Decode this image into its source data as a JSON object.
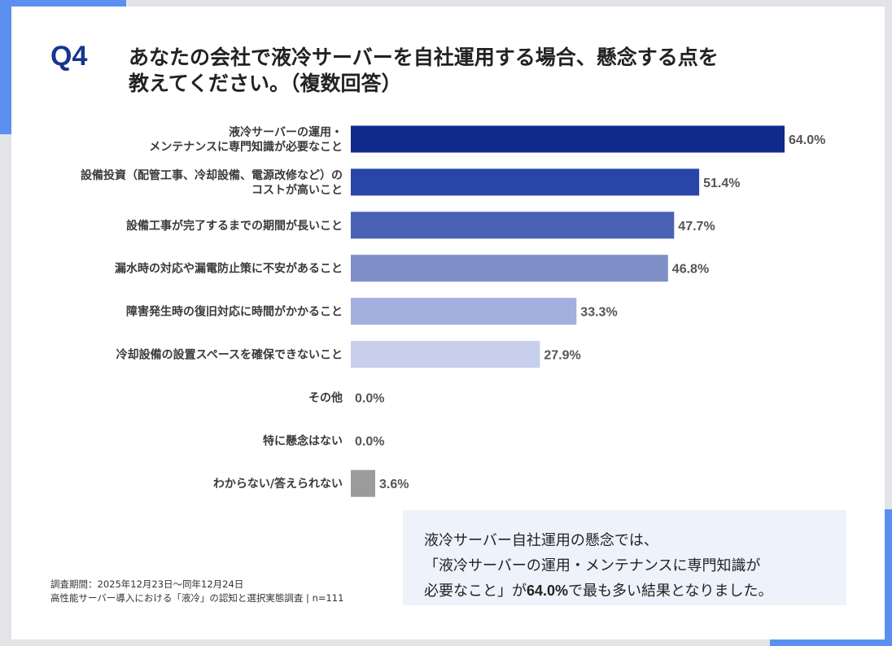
{
  "question": {
    "number": "Q4",
    "line1": "あなたの会社で液冷サーバーを自社運用する場合、懸念する点を",
    "line2": "教えてください。（複数回答）"
  },
  "chart_data": {
    "type": "bar",
    "orientation": "horizontal",
    "xlim": [
      0,
      100
    ],
    "categories": [
      [
        "液冷サーバーの運用・",
        "メンテナンスに専門知識が必要なこと"
      ],
      [
        "設備投資（配管工事、冷却設備、電源改修など）の",
        "コストが高いこと"
      ],
      [
        "設備工事が完了するまでの期間が長いこと"
      ],
      [
        "漏水時の対応や漏電防止策に不安があること"
      ],
      [
        "障害発生時の復旧対応に時間がかかること"
      ],
      [
        "冷却設備の設置スペースを確保できないこと"
      ],
      [
        "その他"
      ],
      [
        "特に懸念はない"
      ],
      [
        "わからない/答えられない"
      ]
    ],
    "values": [
      64.0,
      51.4,
      47.7,
      46.8,
      33.3,
      27.9,
      0.0,
      0.0,
      3.6
    ],
    "value_labels": [
      "64.0%",
      "51.4%",
      "47.7%",
      "46.8%",
      "33.3%",
      "27.9%",
      "0.0%",
      "0.0%",
      "3.6%"
    ],
    "colors": [
      "#0f2a8a",
      "#2a45a8",
      "#4a62b4",
      "#7f8fc8",
      "#a3afdd",
      "#c7cfec",
      "#c7cfec",
      "#c7cfec",
      "#9b9b9b"
    ],
    "grid": false,
    "legend": "none"
  },
  "summary": {
    "line1": "液冷サーバー自社運用の懸念では、",
    "line2": "「液冷サーバーの運用・メンテナンスに専門知識が",
    "line3_pre": "必要なこと」が",
    "line3_value": "64.0%",
    "line3_post": "で最も多い結果となりました。"
  },
  "source": {
    "period": "調査期間：2025年12月23日〜同年12月24日",
    "survey": "高性能サーバー導入における「液冷」の認知と選択実態調査 | n=111"
  }
}
